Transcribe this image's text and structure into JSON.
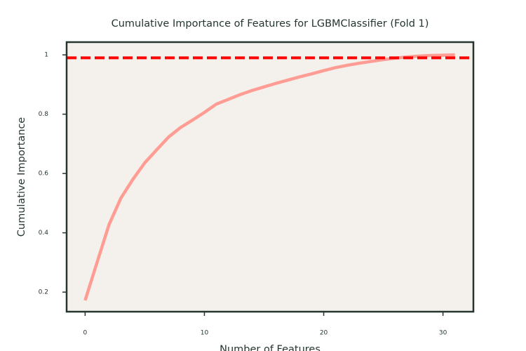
{
  "chart_data": {
    "type": "line",
    "title": "Cumulative Importance of Features for LGBMClassifier (Fold 1)",
    "x_label": "Number of Features",
    "y_label": "Cumulative Importance",
    "x": [
      0,
      1,
      2,
      3,
      4,
      5,
      6,
      7,
      8,
      9,
      10,
      11,
      12,
      13,
      14,
      15,
      16,
      17,
      18,
      19,
      20,
      21,
      22,
      23,
      24,
      25,
      26,
      27,
      28,
      29,
      30,
      31
    ],
    "values": [
      0.172,
      0.3,
      0.427,
      0.517,
      0.58,
      0.636,
      0.68,
      0.723,
      0.755,
      0.78,
      0.806,
      0.834,
      0.85,
      0.866,
      0.88,
      0.892,
      0.904,
      0.915,
      0.926,
      0.936,
      0.947,
      0.957,
      0.965,
      0.972,
      0.978,
      0.984,
      0.989,
      0.993,
      0.996,
      0.998,
      0.999,
      1.0
    ],
    "color": "#ff9d95",
    "threshold": 0.99,
    "threshold_color": "#ff0000",
    "xlim": [
      -1.55,
      32.55
    ],
    "xticks": [
      0,
      10,
      20,
      30
    ],
    "ylim": [
      0.134,
      1.043
    ],
    "yticks": [
      0.2,
      0.4,
      0.6,
      0.8,
      1.0
    ]
  }
}
